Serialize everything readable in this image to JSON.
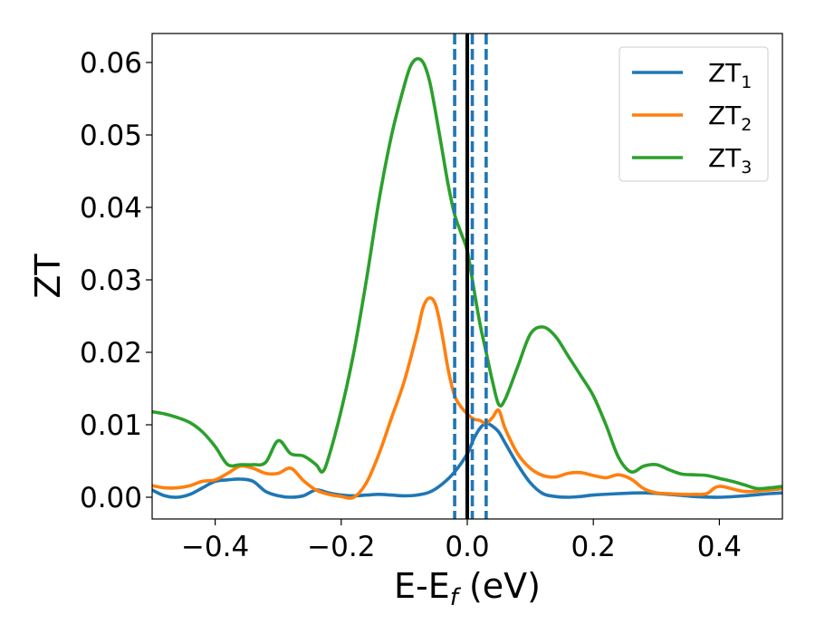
{
  "chart_data": {
    "type": "line",
    "xlabel": "E-E",
    "xlabel_subscript": "f",
    "xlabel_unit": " (eV)",
    "ylabel": "ZT",
    "xlim": [
      -0.5,
      0.5
    ],
    "ylim": [
      -0.003,
      0.064
    ],
    "xticks": [
      -0.4,
      -0.2,
      0.0,
      0.2,
      0.4
    ],
    "xtick_labels": [
      "−0.4",
      "−0.2",
      "0.0",
      "0.2",
      "0.4"
    ],
    "yticks": [
      0.0,
      0.01,
      0.02,
      0.03,
      0.04,
      0.05,
      0.06
    ],
    "ytick_labels": [
      "0.00",
      "0.01",
      "0.02",
      "0.03",
      "0.04",
      "0.05",
      "0.06"
    ],
    "grid": false,
    "legend_position": "top-right",
    "vertical_lines": [
      {
        "x": 0.0,
        "style": "solid",
        "color": "#000000"
      },
      {
        "x": -0.02,
        "style": "dashed",
        "color": "#1f77b4"
      },
      {
        "x": 0.008,
        "style": "dashed",
        "color": "#1f77b4"
      },
      {
        "x": 0.03,
        "style": "dashed",
        "color": "#1f77b4"
      }
    ],
    "series": [
      {
        "name": "ZT",
        "subscript": "1",
        "color": "#1f77b4",
        "x": [
          -0.5,
          -0.48,
          -0.46,
          -0.44,
          -0.42,
          -0.4,
          -0.38,
          -0.36,
          -0.34,
          -0.32,
          -0.3,
          -0.28,
          -0.26,
          -0.24,
          -0.22,
          -0.2,
          -0.18,
          -0.16,
          -0.14,
          -0.12,
          -0.1,
          -0.08,
          -0.06,
          -0.04,
          -0.02,
          0.0,
          0.01,
          0.02,
          0.03,
          0.04,
          0.05,
          0.06,
          0.08,
          0.1,
          0.12,
          0.14,
          0.16,
          0.18,
          0.2,
          0.24,
          0.28,
          0.32,
          0.36,
          0.4,
          0.44,
          0.48,
          0.5
        ],
        "y": [
          0.001,
          0.0002,
          0.0,
          0.0004,
          0.0013,
          0.0022,
          0.0024,
          0.0025,
          0.0022,
          0.0008,
          0.0002,
          0.0,
          0.0002,
          0.001,
          0.0006,
          0.0003,
          0.0002,
          0.0003,
          0.0004,
          0.0003,
          0.0002,
          0.0003,
          0.0007,
          0.0018,
          0.0035,
          0.006,
          0.008,
          0.0095,
          0.0102,
          0.0098,
          0.009,
          0.0075,
          0.0045,
          0.002,
          0.0005,
          0.0001,
          0.0,
          0.0001,
          0.0003,
          0.0005,
          0.0006,
          0.0004,
          0.0001,
          0.0,
          0.0002,
          0.0005,
          0.0006
        ]
      },
      {
        "name": "ZT",
        "subscript": "2",
        "color": "#ff7f0e",
        "x": [
          -0.5,
          -0.48,
          -0.46,
          -0.44,
          -0.42,
          -0.4,
          -0.38,
          -0.36,
          -0.34,
          -0.32,
          -0.3,
          -0.28,
          -0.26,
          -0.24,
          -0.22,
          -0.2,
          -0.18,
          -0.16,
          -0.14,
          -0.12,
          -0.1,
          -0.08,
          -0.07,
          -0.06,
          -0.05,
          -0.04,
          -0.03,
          -0.02,
          -0.01,
          0.0,
          0.01,
          0.02,
          0.03,
          0.04,
          0.05,
          0.06,
          0.08,
          0.1,
          0.12,
          0.14,
          0.16,
          0.18,
          0.2,
          0.22,
          0.24,
          0.26,
          0.28,
          0.3,
          0.32,
          0.34,
          0.36,
          0.38,
          0.4,
          0.44,
          0.48,
          0.5
        ],
        "y": [
          0.0016,
          0.0013,
          0.0013,
          0.0016,
          0.0022,
          0.0024,
          0.0033,
          0.0043,
          0.004,
          0.0033,
          0.0033,
          0.004,
          0.0023,
          0.001,
          0.0004,
          0.0001,
          0.0,
          0.002,
          0.006,
          0.011,
          0.016,
          0.0225,
          0.0262,
          0.0275,
          0.0265,
          0.0225,
          0.0175,
          0.014,
          0.0125,
          0.0115,
          0.0108,
          0.0106,
          0.0102,
          0.011,
          0.012,
          0.0095,
          0.006,
          0.004,
          0.003,
          0.0028,
          0.0033,
          0.0034,
          0.003,
          0.0027,
          0.0031,
          0.0025,
          0.0012,
          0.0006,
          0.0005,
          0.0004,
          0.0004,
          0.0005,
          0.0015,
          0.0008,
          0.001,
          0.0012
        ]
      },
      {
        "name": "ZT",
        "subscript": "3",
        "color": "#2ca02c",
        "x": [
          -0.5,
          -0.48,
          -0.46,
          -0.44,
          -0.42,
          -0.4,
          -0.38,
          -0.36,
          -0.34,
          -0.32,
          -0.3,
          -0.28,
          -0.26,
          -0.24,
          -0.23,
          -0.22,
          -0.2,
          -0.18,
          -0.16,
          -0.14,
          -0.12,
          -0.1,
          -0.09,
          -0.08,
          -0.07,
          -0.06,
          -0.05,
          -0.04,
          -0.03,
          -0.02,
          -0.01,
          0.0,
          0.01,
          0.02,
          0.03,
          0.04,
          0.05,
          0.06,
          0.08,
          0.1,
          0.12,
          0.14,
          0.16,
          0.18,
          0.2,
          0.22,
          0.24,
          0.26,
          0.28,
          0.3,
          0.32,
          0.34,
          0.36,
          0.38,
          0.4,
          0.42,
          0.44,
          0.46,
          0.48,
          0.5
        ],
        "y": [
          0.0118,
          0.0115,
          0.011,
          0.0103,
          0.009,
          0.007,
          0.0045,
          0.0045,
          0.0045,
          0.0048,
          0.0078,
          0.006,
          0.0057,
          0.0045,
          0.0035,
          0.0055,
          0.012,
          0.02,
          0.03,
          0.041,
          0.05,
          0.0568,
          0.0595,
          0.0605,
          0.06,
          0.0575,
          0.053,
          0.048,
          0.043,
          0.039,
          0.0365,
          0.034,
          0.029,
          0.024,
          0.02,
          0.016,
          0.0128,
          0.0135,
          0.018,
          0.0225,
          0.0235,
          0.0222,
          0.0195,
          0.0168,
          0.014,
          0.01,
          0.0055,
          0.0035,
          0.0043,
          0.0045,
          0.0038,
          0.0032,
          0.0031,
          0.003,
          0.0026,
          0.0022,
          0.0017,
          0.0012,
          0.0013,
          0.0015
        ]
      }
    ]
  }
}
